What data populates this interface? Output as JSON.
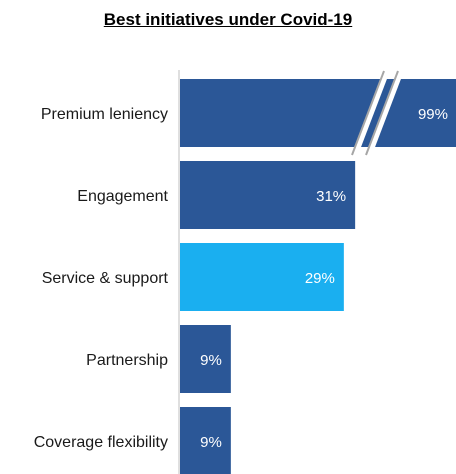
{
  "chart_data": {
    "type": "bar",
    "orientation": "horizontal",
    "title": "Best initiatives under Covid-19",
    "categories": [
      "Premium leniency",
      "Engagement",
      "Service & support",
      "Partnership",
      "Coverage flexibility"
    ],
    "values": [
      99,
      31,
      29,
      9,
      9
    ],
    "value_labels": [
      "99%",
      "31%",
      "29%",
      "9%",
      "9%"
    ],
    "unit": "%",
    "axis_break": true,
    "colors": [
      "#2b5797",
      "#2b5797",
      "#1aaff0",
      "#2b5797",
      "#2b5797"
    ],
    "grid": false,
    "legend": "none"
  }
}
